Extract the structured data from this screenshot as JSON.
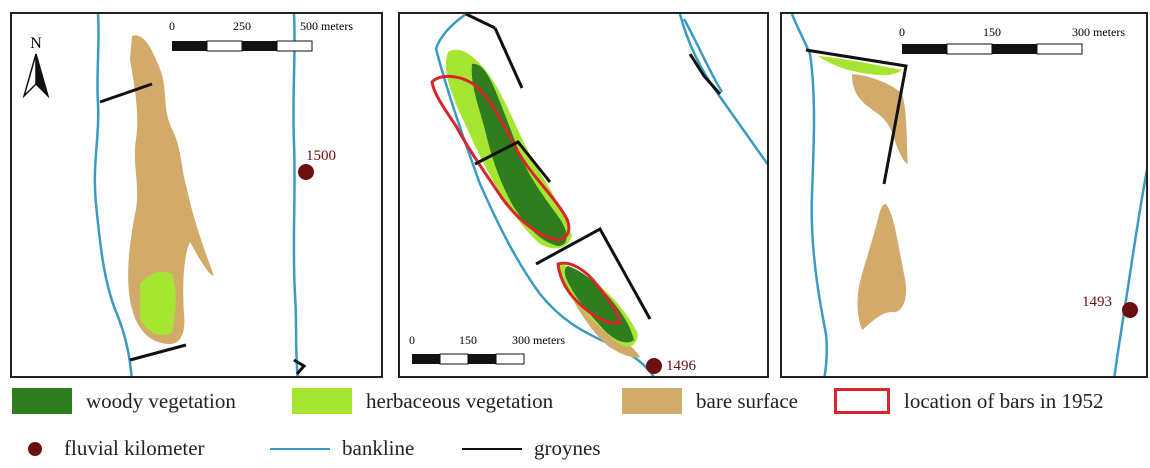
{
  "colors": {
    "woody": "#2e7d1f",
    "herbaceous": "#a6e632",
    "bare": "#d2aa6a",
    "bars1952": "#d9252b",
    "kilometer": "#6b0f0f",
    "bankline": "#3a9bc2",
    "groynes": "#111111"
  },
  "panels": {
    "left": {
      "north_label": "N",
      "scale": {
        "t0": "0",
        "t1": "250",
        "t2": "500 meters"
      },
      "kilometer_label": "1500"
    },
    "middle": {
      "scale": {
        "t0": "0",
        "t1": "150",
        "t2": "300 meters"
      },
      "kilometer_label": "1496"
    },
    "right": {
      "scale": {
        "t0": "0",
        "t1": "150",
        "t2": "300 meters"
      },
      "kilometer_label": "1493"
    }
  },
  "legend": {
    "woody": "woody vegetation",
    "herbaceous": "herbaceous vegetation",
    "bare": "bare surface",
    "bars1952": "location of bars in 1952",
    "kilometer": "fluvial kilometer",
    "bankline": "bankline",
    "groynes": "groynes"
  }
}
